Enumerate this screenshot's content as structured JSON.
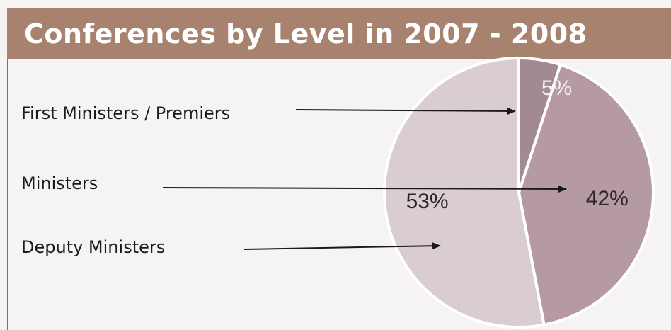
{
  "chart_data": {
    "type": "pie",
    "title": "Conferences by Level in 2007 - 2008",
    "slices": [
      {
        "label": "First Ministers / Premiers",
        "value": 5,
        "display": "5%",
        "color": "#a38a90"
      },
      {
        "label": "Ministers",
        "value": 42,
        "display": "42%",
        "color": "#b59ba1"
      },
      {
        "label": "Deputy Ministers",
        "value": 53,
        "display": "53%",
        "color": "#d9cdd2"
      }
    ],
    "start_angle_deg": 90,
    "direction": "clockwise",
    "legend": "left, with arrows pointing to slices"
  },
  "colors": {
    "title_bar": "#a7826f",
    "title_text": "#ffffff",
    "background": "#f6f4f3",
    "slice_border": "#ffffff",
    "arrow": "#1a1a1a"
  }
}
